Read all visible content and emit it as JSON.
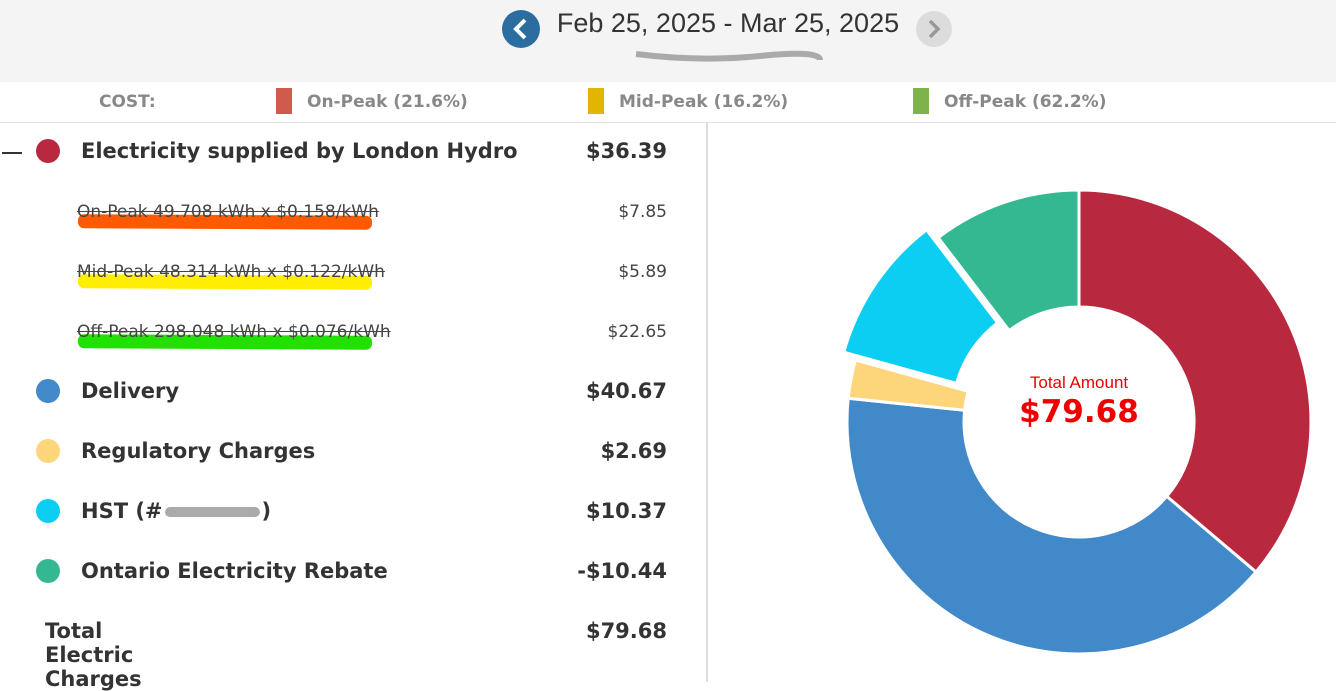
{
  "header": {
    "date_range": "Feb 25, 2025 - Mar 25, 2025"
  },
  "cost_legend": {
    "label": "COST:",
    "items": [
      {
        "label": "On-Peak (21.6%)",
        "color": "#d05a4c"
      },
      {
        "label": "Mid-Peak (16.2%)",
        "color": "#e2b500"
      },
      {
        "label": "Off-Peak (62.2%)",
        "color": "#7fb24a"
      }
    ]
  },
  "breakdown": {
    "items": [
      {
        "name": "Electricity supplied by London Hydro",
        "amount": "$36.39",
        "color": "#b82940",
        "details": [
          {
            "text": "On-Peak 49.708 kWh x $0.158/kWh",
            "amount": "$7.85",
            "highlight": "#ff5a00"
          },
          {
            "text": "Mid-Peak 48.314 kWh x $0.122/kWh",
            "amount": "$5.89",
            "highlight": "#ffee00"
          },
          {
            "text": "Off-Peak 298.048 kWh x $0.076/kWh",
            "amount": "$22.65",
            "highlight": "#22e000"
          }
        ]
      },
      {
        "name": "Delivery",
        "amount": "$40.67",
        "color": "#4189c9"
      },
      {
        "name": "Regulatory Charges",
        "amount": "$2.69",
        "color": "#fdd57a"
      },
      {
        "name": "HST (#",
        "name_end": ")",
        "amount": "$10.37",
        "color": "#0ccdf2"
      },
      {
        "name": "Ontario Electricity Rebate",
        "amount": "-$10.44",
        "color": "#33b891"
      }
    ],
    "total": {
      "name": "Total Electric Charges",
      "amount": "$79.68"
    }
  },
  "chart_data": {
    "type": "donut",
    "center_label": "Total Amount",
    "center_value": "$79.68",
    "values": [
      36.39,
      40.67,
      2.69,
      10.37,
      10.44
    ],
    "colors": [
      "#b82940",
      "#4189c9",
      "#fdd57a",
      "#0ccdf2",
      "#33b891"
    ],
    "exploded": [
      false,
      false,
      false,
      true,
      false
    ]
  }
}
